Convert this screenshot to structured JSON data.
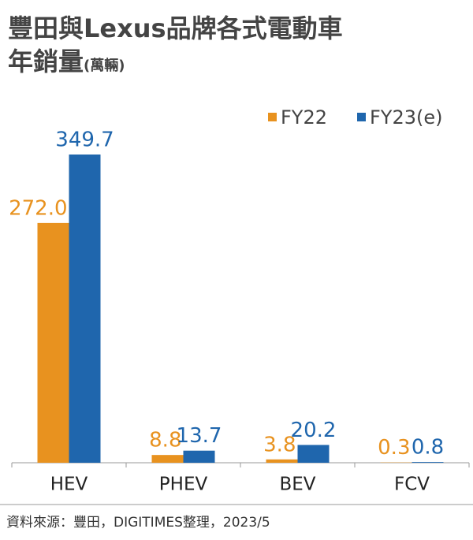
{
  "chart_data": {
    "type": "bar",
    "title": [
      "豐田與Lexus品牌各式電動車",
      "年銷量"
    ],
    "unit": "(萬輛)",
    "categories": [
      "HEV",
      "PHEV",
      "BEV",
      "FCV"
    ],
    "series": [
      {
        "name": "FY22",
        "color": "#e8921f",
        "values": [
          272.0,
          8.8,
          3.8,
          0.3
        ],
        "value_labels": [
          "272.0",
          "8.8",
          "3.8",
          "0.3"
        ]
      },
      {
        "name": "FY23(e)",
        "color": "#1f66ad",
        "values": [
          349.7,
          13.7,
          20.2,
          0.8
        ]
      }
    ],
    "source": "資料來源：豐田，DIGITIMES整理，2023/5"
  }
}
